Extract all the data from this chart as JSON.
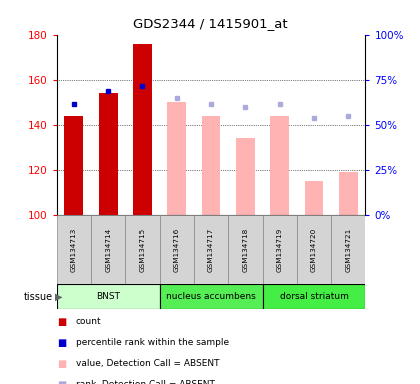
{
  "title": "GDS2344 / 1415901_at",
  "samples": [
    "GSM134713",
    "GSM134714",
    "GSM134715",
    "GSM134716",
    "GSM134717",
    "GSM134718",
    "GSM134719",
    "GSM134720",
    "GSM134721"
  ],
  "ylim_left": [
    100,
    180
  ],
  "ylim_right": [
    0,
    100
  ],
  "yticks_left": [
    100,
    120,
    140,
    160,
    180
  ],
  "yticks_right": [
    0,
    25,
    50,
    75,
    100
  ],
  "ytick_labels_right": [
    "0%",
    "25%",
    "50%",
    "75%",
    "100%"
  ],
  "bar_values_present": [
    144,
    154,
    176,
    null,
    null,
    null,
    null,
    null,
    null
  ],
  "bar_values_absent": [
    null,
    null,
    null,
    150,
    144,
    134,
    144,
    115,
    119
  ],
  "rank_present": [
    149,
    155,
    157,
    null,
    null,
    null,
    null,
    null,
    null
  ],
  "rank_absent": [
    null,
    null,
    null,
    152,
    149,
    148,
    149,
    143,
    144
  ],
  "color_present_bar": "#cc0000",
  "color_absent_bar": "#ffb3b3",
  "color_present_rank": "#0000cc",
  "color_absent_rank": "#aaaadd",
  "tissue_groups": [
    {
      "label": "BNST",
      "start": 0,
      "end": 3,
      "color": "#ccffcc"
    },
    {
      "label": "nucleus accumbens",
      "start": 3,
      "end": 6,
      "color": "#55ee55"
    },
    {
      "label": "dorsal striatum",
      "start": 6,
      "end": 9,
      "color": "#44ee44"
    }
  ],
  "legend_items": [
    {
      "label": "count",
      "color": "#cc0000"
    },
    {
      "label": "percentile rank within the sample",
      "color": "#0000cc"
    },
    {
      "label": "value, Detection Call = ABSENT",
      "color": "#ffb3b3"
    },
    {
      "label": "rank, Detection Call = ABSENT",
      "color": "#aaaadd"
    }
  ]
}
